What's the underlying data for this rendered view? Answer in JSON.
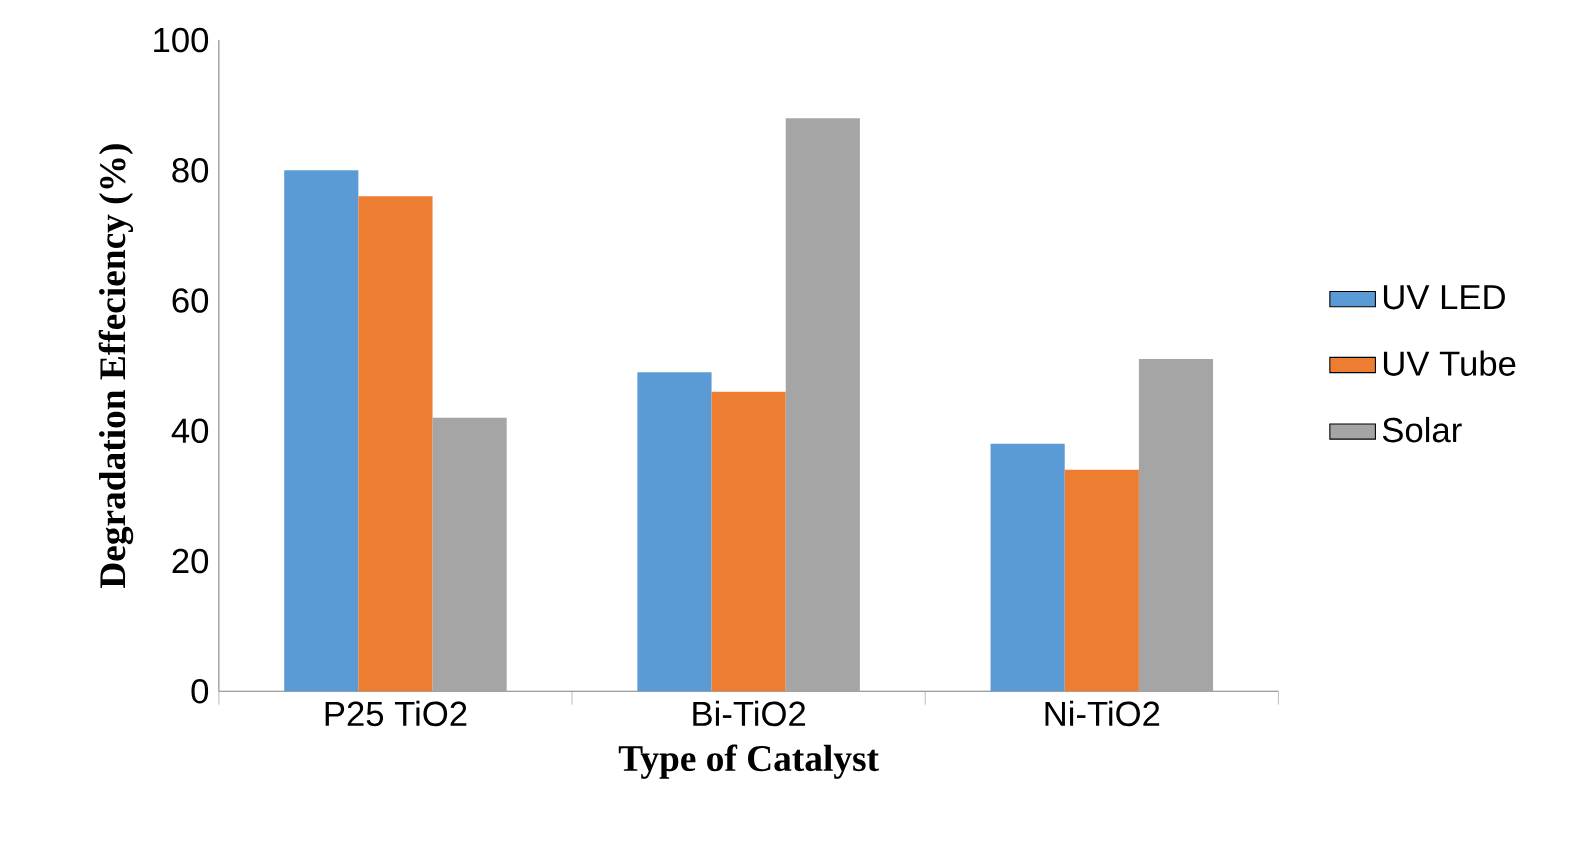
{
  "chart_data": {
    "type": "bar",
    "xlabel": "Type of Catalyst",
    "ylabel": "Degradation Effeciency (%)",
    "categories": [
      "P25 TiO2",
      "Bi-TiO2",
      "Ni-TiO2"
    ],
    "series": [
      {
        "name": "UV LED",
        "color": "#5b9bd5",
        "values": [
          80,
          49,
          38
        ]
      },
      {
        "name": "UV Tube",
        "color": "#ed7d31",
        "values": [
          76,
          46,
          34
        ]
      },
      {
        "name": "Solar",
        "color": "#a5a5a5",
        "values": [
          42,
          88,
          51
        ]
      }
    ],
    "ylim": [
      0,
      100
    ],
    "yticks": [
      0,
      20,
      40,
      60,
      80,
      100
    ],
    "grid": false,
    "legend": "right"
  }
}
